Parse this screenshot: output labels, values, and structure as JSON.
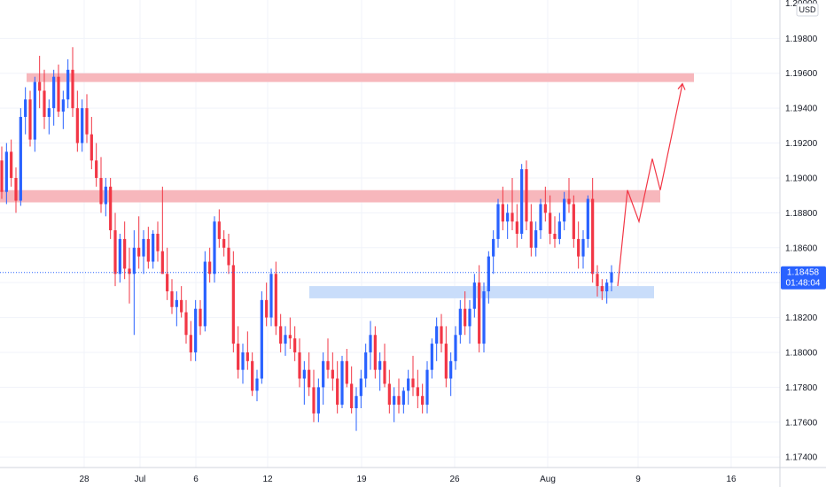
{
  "chart_data": {
    "type": "candlestick",
    "symbol_currency": "USD",
    "current_price": "1.18458",
    "countdown": "01:48:04",
    "y_range": [
      1.1734,
      1.2002
    ],
    "y_ticks": [
      "1.19800",
      "1.19600",
      "1.19400",
      "1.19200",
      "1.19000",
      "1.18800",
      "1.18600",
      "1.18400",
      "1.18200",
      "1.18000",
      "1.17800",
      "1.17600",
      "1.17400"
    ],
    "top_partial_tick": "1.20000",
    "x_labels": [
      "28",
      "Jul",
      "6",
      "12",
      "19",
      "26",
      "Aug",
      "9",
      "16"
    ],
    "colors": {
      "up": "#2962FF",
      "down": "#F23645",
      "resistance_zone": "#F7B7BC",
      "support_zone": "#C9DDFA",
      "projection": "#F23645",
      "price_tag": "#2962FF"
    },
    "zones": [
      {
        "kind": "resistance",
        "price_low": 1.1955,
        "price_high": 1.196
      },
      {
        "kind": "resistance",
        "price_low": 1.1886,
        "price_high": 1.1893
      },
      {
        "kind": "support",
        "price_low": 1.1831,
        "price_high": 1.1838
      }
    ],
    "projection_path": [
      1.1838,
      1.1893,
      1.1875,
      1.1911,
      1.1893,
      1.1954
    ],
    "candles": [
      [
        1.191,
        1.1918,
        1.1888,
        1.1892
      ],
      [
        1.1892,
        1.192,
        1.1885,
        1.1915
      ],
      [
        1.1915,
        1.1922,
        1.1895,
        1.19
      ],
      [
        1.19,
        1.1906,
        1.188,
        1.1887
      ],
      [
        1.1887,
        1.194,
        1.1884,
        1.1935
      ],
      [
        1.1935,
        1.1952,
        1.1925,
        1.1945
      ],
      [
        1.1945,
        1.195,
        1.1918,
        1.1922
      ],
      [
        1.1922,
        1.1958,
        1.1915,
        1.1955
      ],
      [
        1.1955,
        1.197,
        1.194,
        1.195
      ],
      [
        1.195,
        1.1962,
        1.1928,
        1.1935
      ],
      [
        1.1935,
        1.1945,
        1.1925,
        1.194
      ],
      [
        1.194,
        1.1962,
        1.193,
        1.1958
      ],
      [
        1.1958,
        1.1965,
        1.1935,
        1.1938
      ],
      [
        1.1938,
        1.195,
        1.1928,
        1.1945
      ],
      [
        1.1945,
        1.1968,
        1.194,
        1.1962
      ],
      [
        1.1962,
        1.1975,
        1.1935,
        1.194
      ],
      [
        1.194,
        1.195,
        1.1915,
        1.192
      ],
      [
        1.192,
        1.1945,
        1.1915,
        1.194
      ],
      [
        1.194,
        1.1948,
        1.192,
        1.1925
      ],
      [
        1.1925,
        1.1935,
        1.1905,
        1.191
      ],
      [
        1.191,
        1.192,
        1.1895,
        1.19
      ],
      [
        1.19,
        1.1912,
        1.188,
        1.1885
      ],
      [
        1.1885,
        1.19,
        1.1878,
        1.1895
      ],
      [
        1.1895,
        1.19,
        1.1865,
        1.187
      ],
      [
        1.187,
        1.188,
        1.1838,
        1.1845
      ],
      [
        1.1845,
        1.1868,
        1.184,
        1.1865
      ],
      [
        1.1865,
        1.1875,
        1.1842,
        1.1848
      ],
      [
        1.1848,
        1.186,
        1.1828,
        1.1845
      ],
      [
        1.1845,
        1.187,
        1.181,
        1.186
      ],
      [
        1.186,
        1.1878,
        1.1848,
        1.1855
      ],
      [
        1.1855,
        1.187,
        1.1845,
        1.1865
      ],
      [
        1.1865,
        1.1872,
        1.1848,
        1.1852
      ],
      [
        1.1852,
        1.187,
        1.1848,
        1.1868
      ],
      [
        1.1868,
        1.1875,
        1.1852,
        1.1858
      ],
      [
        1.1858,
        1.1895,
        1.1845,
        1.1845
      ],
      [
        1.1845,
        1.186,
        1.183,
        1.1835
      ],
      [
        1.1835,
        1.1842,
        1.1822,
        1.1826
      ],
      [
        1.1826,
        1.1835,
        1.1815,
        1.183
      ],
      [
        1.183,
        1.1838,
        1.182,
        1.1823
      ],
      [
        1.1823,
        1.183,
        1.1805,
        1.181
      ],
      [
        1.181,
        1.1818,
        1.1795,
        1.18
      ],
      [
        1.18,
        1.183,
        1.1795,
        1.1825
      ],
      [
        1.1825,
        1.183,
        1.181,
        1.1815
      ],
      [
        1.1815,
        1.1858,
        1.1812,
        1.1852
      ],
      [
        1.1852,
        1.186,
        1.184,
        1.1845
      ],
      [
        1.1845,
        1.1878,
        1.184,
        1.1875
      ],
      [
        1.1875,
        1.1882,
        1.186,
        1.1865
      ],
      [
        1.1865,
        1.187,
        1.1855,
        1.186
      ],
      [
        1.186,
        1.1868,
        1.1845,
        1.185
      ],
      [
        1.185,
        1.1858,
        1.18,
        1.1805
      ],
      [
        1.1805,
        1.1815,
        1.1785,
        1.179
      ],
      [
        1.179,
        1.1805,
        1.1782,
        1.18
      ],
      [
        1.18,
        1.1812,
        1.179,
        1.1795
      ],
      [
        1.1795,
        1.18,
        1.1775,
        1.1778
      ],
      [
        1.1778,
        1.179,
        1.1772,
        1.1785
      ],
      [
        1.1785,
        1.1835,
        1.1782,
        1.183
      ],
      [
        1.183,
        1.184,
        1.1815,
        1.182
      ],
      [
        1.182,
        1.1848,
        1.1815,
        1.1845
      ],
      [
        1.1845,
        1.1852,
        1.181,
        1.1815
      ],
      [
        1.1815,
        1.1822,
        1.18,
        1.1805
      ],
      [
        1.1805,
        1.1815,
        1.1798,
        1.181
      ],
      [
        1.181,
        1.182,
        1.1802,
        1.1808
      ],
      [
        1.1808,
        1.1815,
        1.1795,
        1.18
      ],
      [
        1.18,
        1.1808,
        1.178,
        1.1785
      ],
      [
        1.1785,
        1.1795,
        1.177,
        1.179
      ],
      [
        1.179,
        1.18,
        1.1775,
        1.178
      ],
      [
        1.178,
        1.179,
        1.176,
        1.1765
      ],
      [
        1.1765,
        1.1785,
        1.176,
        1.178
      ],
      [
        1.178,
        1.18,
        1.177,
        1.1795
      ],
      [
        1.1795,
        1.1808,
        1.1785,
        1.179
      ],
      [
        1.179,
        1.18,
        1.1778,
        1.1785
      ],
      [
        1.1785,
        1.1795,
        1.1765,
        1.177
      ],
      [
        1.177,
        1.1798,
        1.1768,
        1.1795
      ],
      [
        1.1795,
        1.1802,
        1.178,
        1.1782
      ],
      [
        1.1782,
        1.1792,
        1.1765,
        1.1768
      ],
      [
        1.1768,
        1.178,
        1.1755,
        1.1775
      ],
      [
        1.1775,
        1.179,
        1.1768,
        1.1785
      ],
      [
        1.1785,
        1.1805,
        1.178,
        1.18
      ],
      [
        1.18,
        1.1818,
        1.179,
        1.181
      ],
      [
        1.181,
        1.1815,
        1.1785,
        1.179
      ],
      [
        1.179,
        1.18,
        1.1778,
        1.1795
      ],
      [
        1.1795,
        1.1805,
        1.178,
        1.1782
      ],
      [
        1.1782,
        1.179,
        1.1765,
        1.177
      ],
      [
        1.177,
        1.178,
        1.176,
        1.1775
      ],
      [
        1.1775,
        1.1785,
        1.1765,
        1.177
      ],
      [
        1.177,
        1.178,
        1.1765,
        1.1778
      ],
      [
        1.1778,
        1.179,
        1.177,
        1.1785
      ],
      [
        1.1785,
        1.1798,
        1.1775,
        1.178
      ],
      [
        1.178,
        1.179,
        1.1768,
        1.1775
      ],
      [
        1.1775,
        1.1782,
        1.1765,
        1.177
      ],
      [
        1.177,
        1.1795,
        1.1765,
        1.179
      ],
      [
        1.179,
        1.1808,
        1.1785,
        1.1805
      ],
      [
        1.1805,
        1.182,
        1.1795,
        1.1815
      ],
      [
        1.1815,
        1.1822,
        1.18,
        1.1805
      ],
      [
        1.1805,
        1.1815,
        1.178,
        1.1785
      ],
      [
        1.1785,
        1.18,
        1.1775,
        1.1795
      ],
      [
        1.1795,
        1.1815,
        1.179,
        1.181
      ],
      [
        1.181,
        1.183,
        1.1805,
        1.1825
      ],
      [
        1.1825,
        1.1835,
        1.181,
        1.1815
      ],
      [
        1.1815,
        1.183,
        1.1805,
        1.1825
      ],
      [
        1.1825,
        1.1845,
        1.182,
        1.184
      ],
      [
        1.184,
        1.185,
        1.18,
        1.1805
      ],
      [
        1.1805,
        1.184,
        1.18,
        1.1835
      ],
      [
        1.1835,
        1.1858,
        1.1828,
        1.1855
      ],
      [
        1.1855,
        1.187,
        1.1845,
        1.1865
      ],
      [
        1.1865,
        1.1888,
        1.186,
        1.1885
      ],
      [
        1.1885,
        1.1895,
        1.187,
        1.1875
      ],
      [
        1.1875,
        1.1885,
        1.1865,
        1.188
      ],
      [
        1.188,
        1.19,
        1.187,
        1.1875
      ],
      [
        1.1875,
        1.1885,
        1.186,
        1.1868
      ],
      [
        1.1868,
        1.1908,
        1.1865,
        1.1905
      ],
      [
        1.1905,
        1.191,
        1.187,
        1.1875
      ],
      [
        1.1875,
        1.1885,
        1.1855,
        1.186
      ],
      [
        1.186,
        1.1875,
        1.1855,
        1.187
      ],
      [
        1.187,
        1.1888,
        1.1865,
        1.1885
      ],
      [
        1.1885,
        1.1895,
        1.1875,
        1.188
      ],
      [
        1.188,
        1.189,
        1.1862,
        1.1868
      ],
      [
        1.1868,
        1.1878,
        1.186,
        1.1865
      ],
      [
        1.1865,
        1.188,
        1.1862,
        1.1875
      ],
      [
        1.1875,
        1.1892,
        1.187,
        1.1888
      ],
      [
        1.1888,
        1.19,
        1.188,
        1.1885
      ],
      [
        1.1885,
        1.189,
        1.186,
        1.1865
      ],
      [
        1.1865,
        1.1875,
        1.1848,
        1.1855
      ],
      [
        1.1855,
        1.187,
        1.1848,
        1.1865
      ],
      [
        1.1865,
        1.189,
        1.186,
        1.1888
      ],
      [
        1.1888,
        1.19,
        1.184,
        1.1845
      ],
      [
        1.1845,
        1.185,
        1.1832,
        1.1838
      ],
      [
        1.1838,
        1.1842,
        1.183,
        1.1835
      ],
      [
        1.1835,
        1.1842,
        1.1828,
        1.184
      ],
      [
        1.184,
        1.185,
        1.1835,
        1.1846
      ]
    ]
  }
}
